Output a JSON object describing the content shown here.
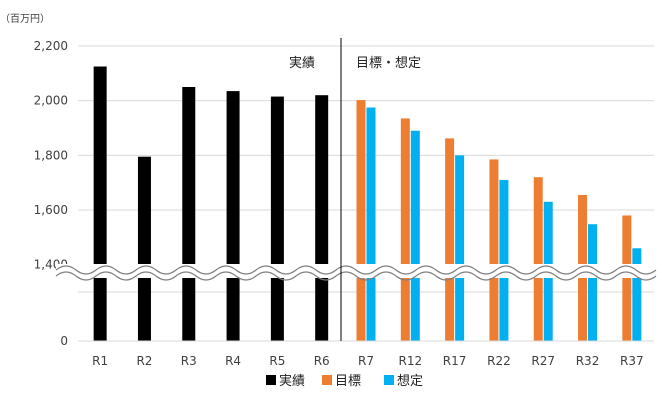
{
  "chart_data": {
    "type": "bar",
    "unit_label": "（百万円）",
    "categories": [
      "R1",
      "R2",
      "R3",
      "R4",
      "R5",
      "R6",
      "R7",
      "R12",
      "R17",
      "R22",
      "R27",
      "R32",
      "R37"
    ],
    "y_ticks": [
      "2,200",
      "2,000",
      "1,800",
      "1,600",
      "1,400",
      "0"
    ],
    "axis_break": "wavy break between 0 and 1,400",
    "sections": [
      "実績",
      "目標・想定"
    ],
    "series": [
      {
        "name": "実績",
        "color": "#000000",
        "values": [
          2125,
          1795,
          2050,
          2035,
          2015,
          2020,
          null,
          null,
          null,
          null,
          null,
          null,
          null
        ]
      },
      {
        "name": "目標",
        "color": "#ED7D31",
        "values": [
          null,
          null,
          null,
          null,
          null,
          null,
          2002,
          1935,
          1862,
          1785,
          1720,
          1655,
          1580
        ]
      },
      {
        "name": "想定",
        "color": "#00B0F0",
        "values": [
          null,
          null,
          null,
          null,
          null,
          null,
          1975,
          1890,
          1800,
          1710,
          1630,
          1548,
          1460
        ]
      }
    ],
    "legend": [
      "実績",
      "目標",
      "想定"
    ],
    "legend_position": "bottom",
    "grid": true
  }
}
